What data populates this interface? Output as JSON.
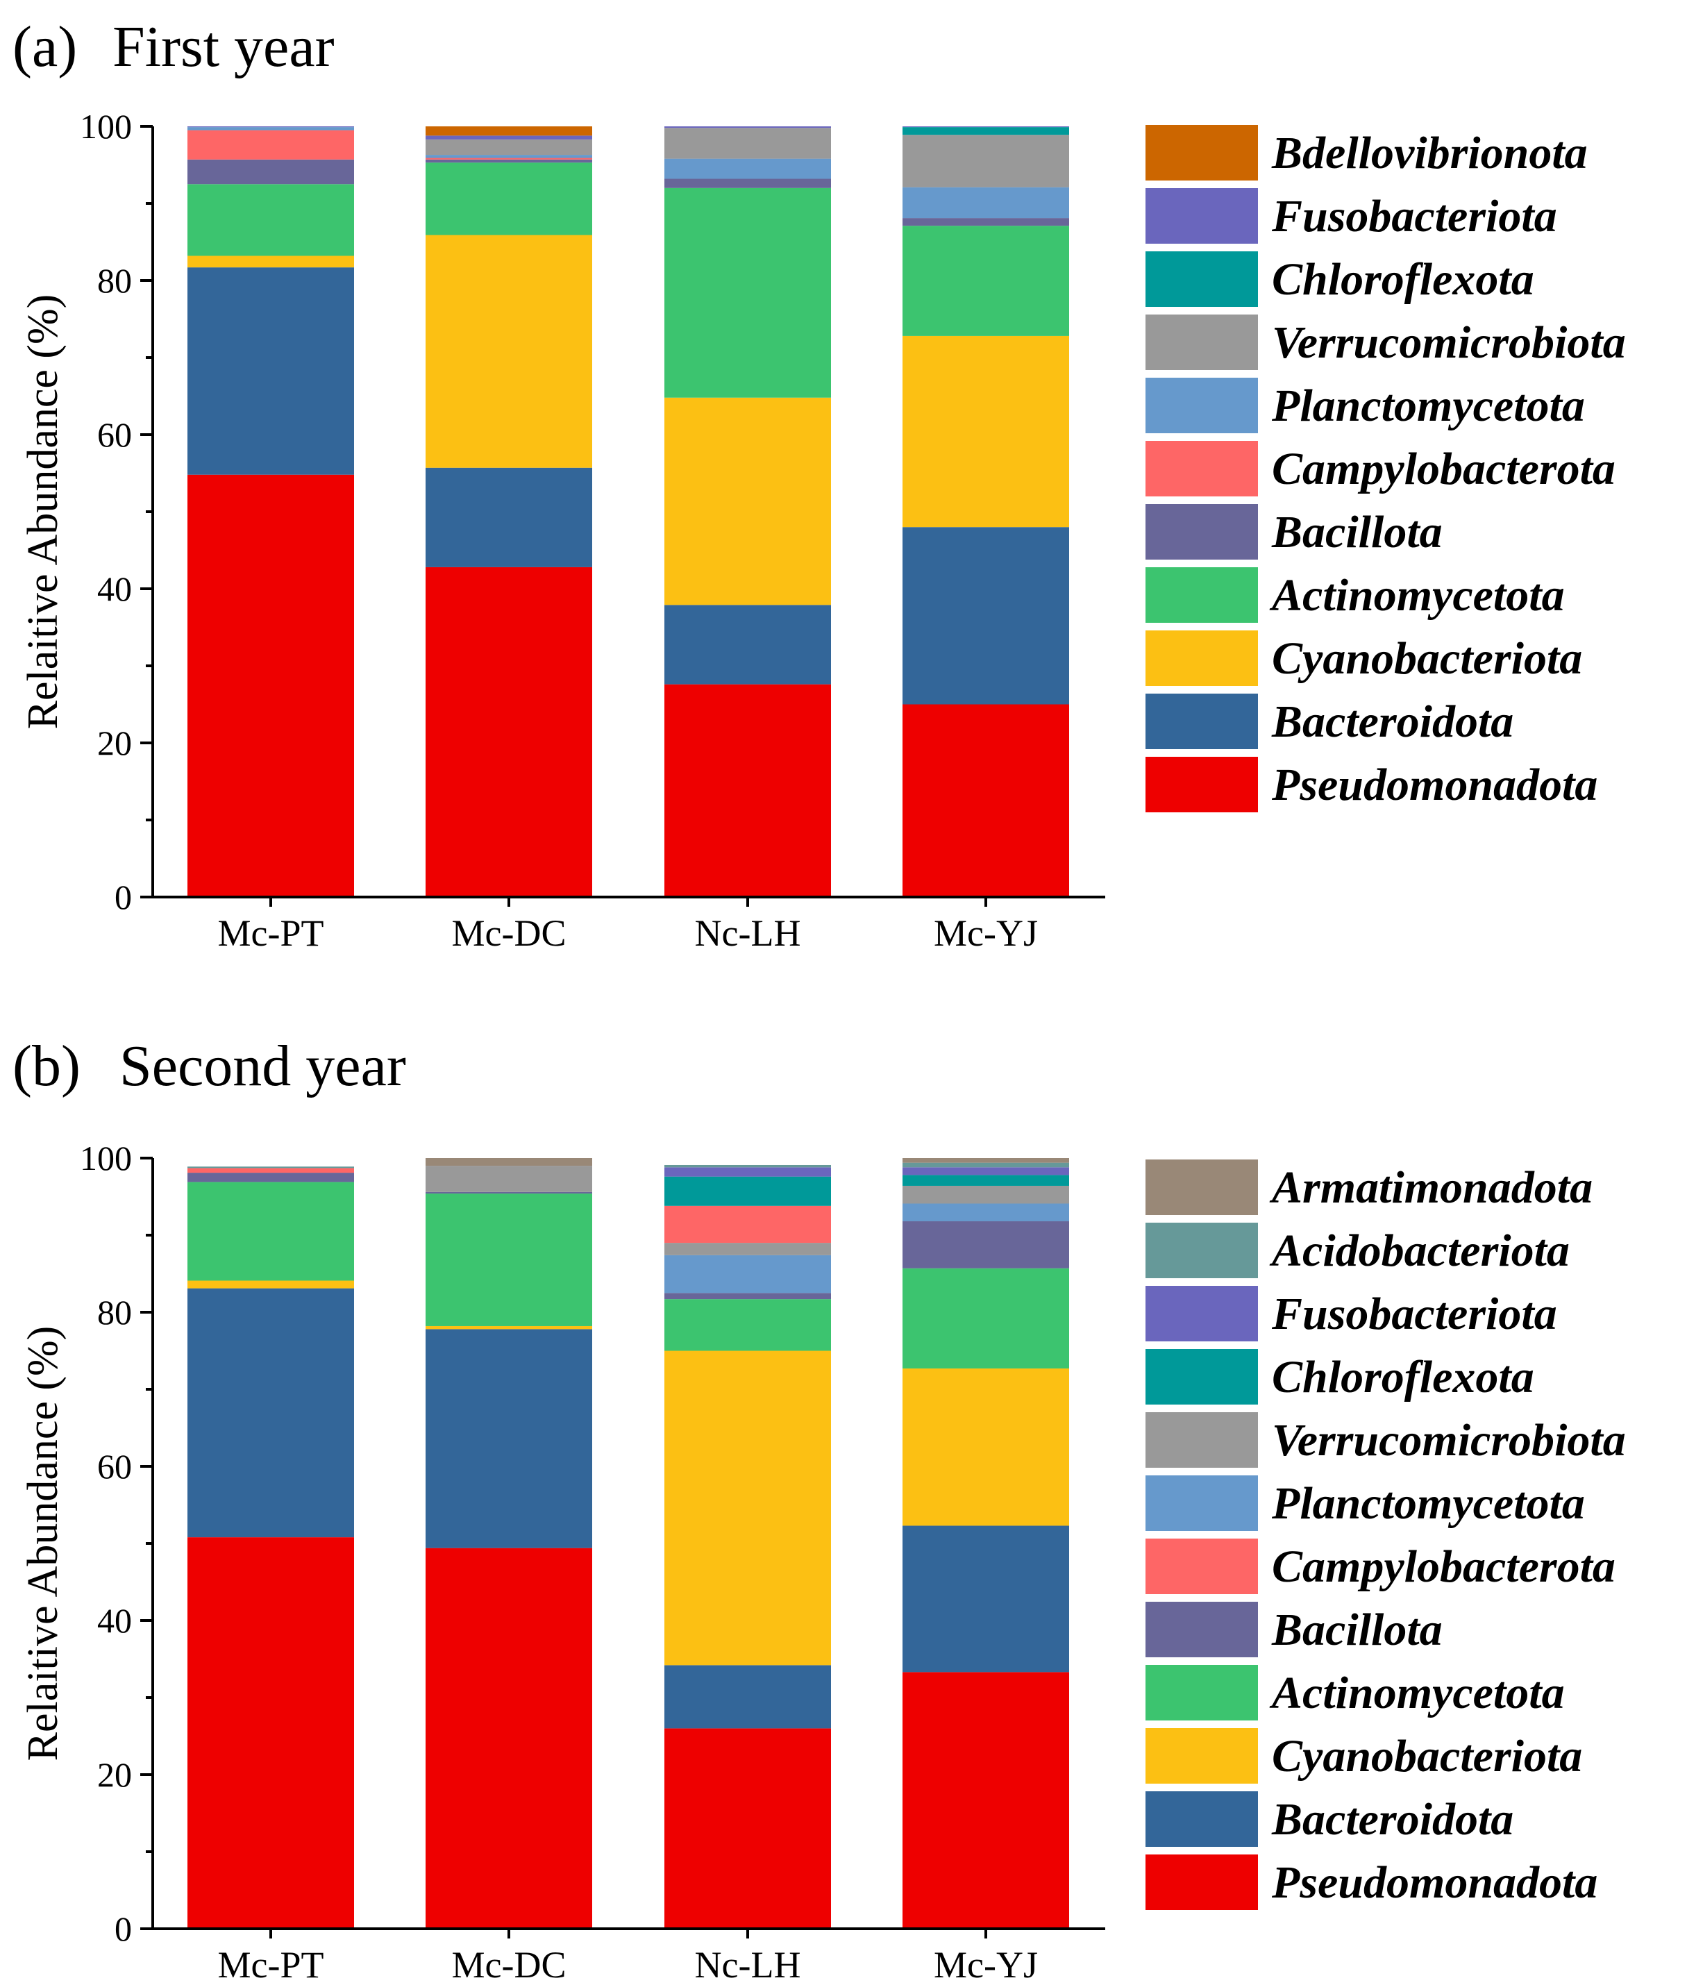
{
  "chart_data": [
    {
      "type": "bar",
      "stacked": true,
      "panel": "(a)",
      "title": "First year",
      "xlabel": "",
      "ylabel": "Relaitive Abundance (%)",
      "ylim": [
        0,
        100
      ],
      "yticks": [
        0,
        20,
        40,
        60,
        80,
        100
      ],
      "categories": [
        "Mc-PT",
        "Mc-DC",
        "Nc-LH",
        "Mc-YJ"
      ],
      "legend_position": "right",
      "series": [
        {
          "name": "Pseudomonadota",
          "color": "#ee0000",
          "values": [
            54.8,
            42.8,
            27.6,
            25.0
          ]
        },
        {
          "name": "Bacteroidota",
          "color": "#336699",
          "values": [
            26.9,
            12.9,
            10.3,
            23.0
          ]
        },
        {
          "name": "Cyanobacteriota",
          "color": "#fcc013",
          "values": [
            1.5,
            30.2,
            26.9,
            24.8
          ]
        },
        {
          "name": "Actinomycetota",
          "color": "#3cc46f",
          "values": [
            9.3,
            9.4,
            27.2,
            14.3
          ]
        },
        {
          "name": "Bacillota",
          "color": "#686699",
          "values": [
            3.2,
            0.4,
            1.2,
            1.0
          ]
        },
        {
          "name": "Campylobacterota",
          "color": "#fe6666",
          "values": [
            3.8,
            0.2,
            0.0,
            0.0
          ]
        },
        {
          "name": "Planctomycetota",
          "color": "#6699cc",
          "values": [
            0.4,
            0.4,
            2.6,
            4.0
          ]
        },
        {
          "name": "Verrucomicrobiota",
          "color": "#999999",
          "values": [
            0.0,
            2.0,
            4.0,
            6.8
          ]
        },
        {
          "name": "Chloroflexota",
          "color": "#009999",
          "values": [
            0.0,
            0.0,
            0.0,
            1.0
          ]
        },
        {
          "name": "Fusobacteriota",
          "color": "#6a66bd",
          "values": [
            0.1,
            0.5,
            0.2,
            0.1
          ]
        },
        {
          "name": "Bdellovibrionota",
          "color": "#cc6600",
          "values": [
            0.0,
            1.2,
            0.0,
            0.0
          ]
        }
      ]
    },
    {
      "type": "bar",
      "stacked": true,
      "panel": "(b)",
      "title": "Second year",
      "xlabel": "",
      "ylabel": "Relaitive Abundance (%)",
      "ylim": [
        0,
        100
      ],
      "yticks": [
        0,
        20,
        40,
        60,
        80,
        100
      ],
      "categories": [
        "Mc-PT",
        "Mc-DC",
        "Nc-LH",
        "Mc-YJ"
      ],
      "legend_position": "right",
      "series": [
        {
          "name": "Pseudomonadota",
          "color": "#ee0000",
          "values": [
            50.8,
            49.4,
            26.0,
            33.3
          ]
        },
        {
          "name": "Bacteroidota",
          "color": "#336699",
          "values": [
            32.3,
            28.4,
            8.2,
            19.0
          ]
        },
        {
          "name": "Cyanobacteriota",
          "color": "#fcc013",
          "values": [
            1.0,
            0.4,
            40.8,
            20.4
          ]
        },
        {
          "name": "Actinomycetota",
          "color": "#3cc46f",
          "values": [
            12.8,
            17.2,
            6.7,
            13.0
          ]
        },
        {
          "name": "Bacillota",
          "color": "#686699",
          "values": [
            1.2,
            0.2,
            0.8,
            6.1
          ]
        },
        {
          "name": "Campylobacterota",
          "color": "#fe6666",
          "values": [
            0.6,
            0.0,
            0.0,
            0.0
          ]
        },
        {
          "name": "Planctomycetota",
          "color": "#6699cc",
          "values": [
            0.0,
            0.0,
            4.9,
            2.3
          ]
        },
        {
          "name": "Verrucomicrobiota",
          "color": "#999999",
          "values": [
            0.0,
            3.4,
            1.6,
            2.3
          ]
        },
        {
          "name": "Campylobacterota",
          "color": "#fe6666",
          "values": [
            0.0,
            0.0,
            4.8,
            0.0
          ]
        },
        {
          "name": "Chloroflexota",
          "color": "#009999",
          "values": [
            0.0,
            0.0,
            3.8,
            1.4
          ]
        },
        {
          "name": "Fusobacteriota",
          "color": "#6a66bd",
          "values": [
            0.0,
            0.0,
            1.2,
            1.0
          ]
        },
        {
          "name": "Acidobacteriota",
          "color": "#669999",
          "values": [
            0.2,
            0.0,
            0.3,
            0.6
          ]
        },
        {
          "name": "Armatimonadota",
          "color": "#998877",
          "values": [
            0.0,
            1.0,
            0.0,
            0.6
          ]
        }
      ],
      "legend_order": [
        "Armatimonadota",
        "Acidobacteriota",
        "Fusobacteriota",
        "Chloroflexota",
        "Verrucomicrobiota",
        "Planctomycetota",
        "Campylobacterota",
        "Bacillota",
        "Actinomycetota",
        "Cyanobacteriota",
        "Bacteroidota",
        "Pseudomonadota"
      ]
    }
  ],
  "legend_a_order": [
    "Bdellovibrionota",
    "Fusobacteriota",
    "Chloroflexota",
    "Verrucomicrobiota",
    "Planctomycetota",
    "Campylobacterota",
    "Bacillota",
    "Actinomycetota",
    "Cyanobacteriota",
    "Bacteroidota",
    "Pseudomonadota"
  ]
}
